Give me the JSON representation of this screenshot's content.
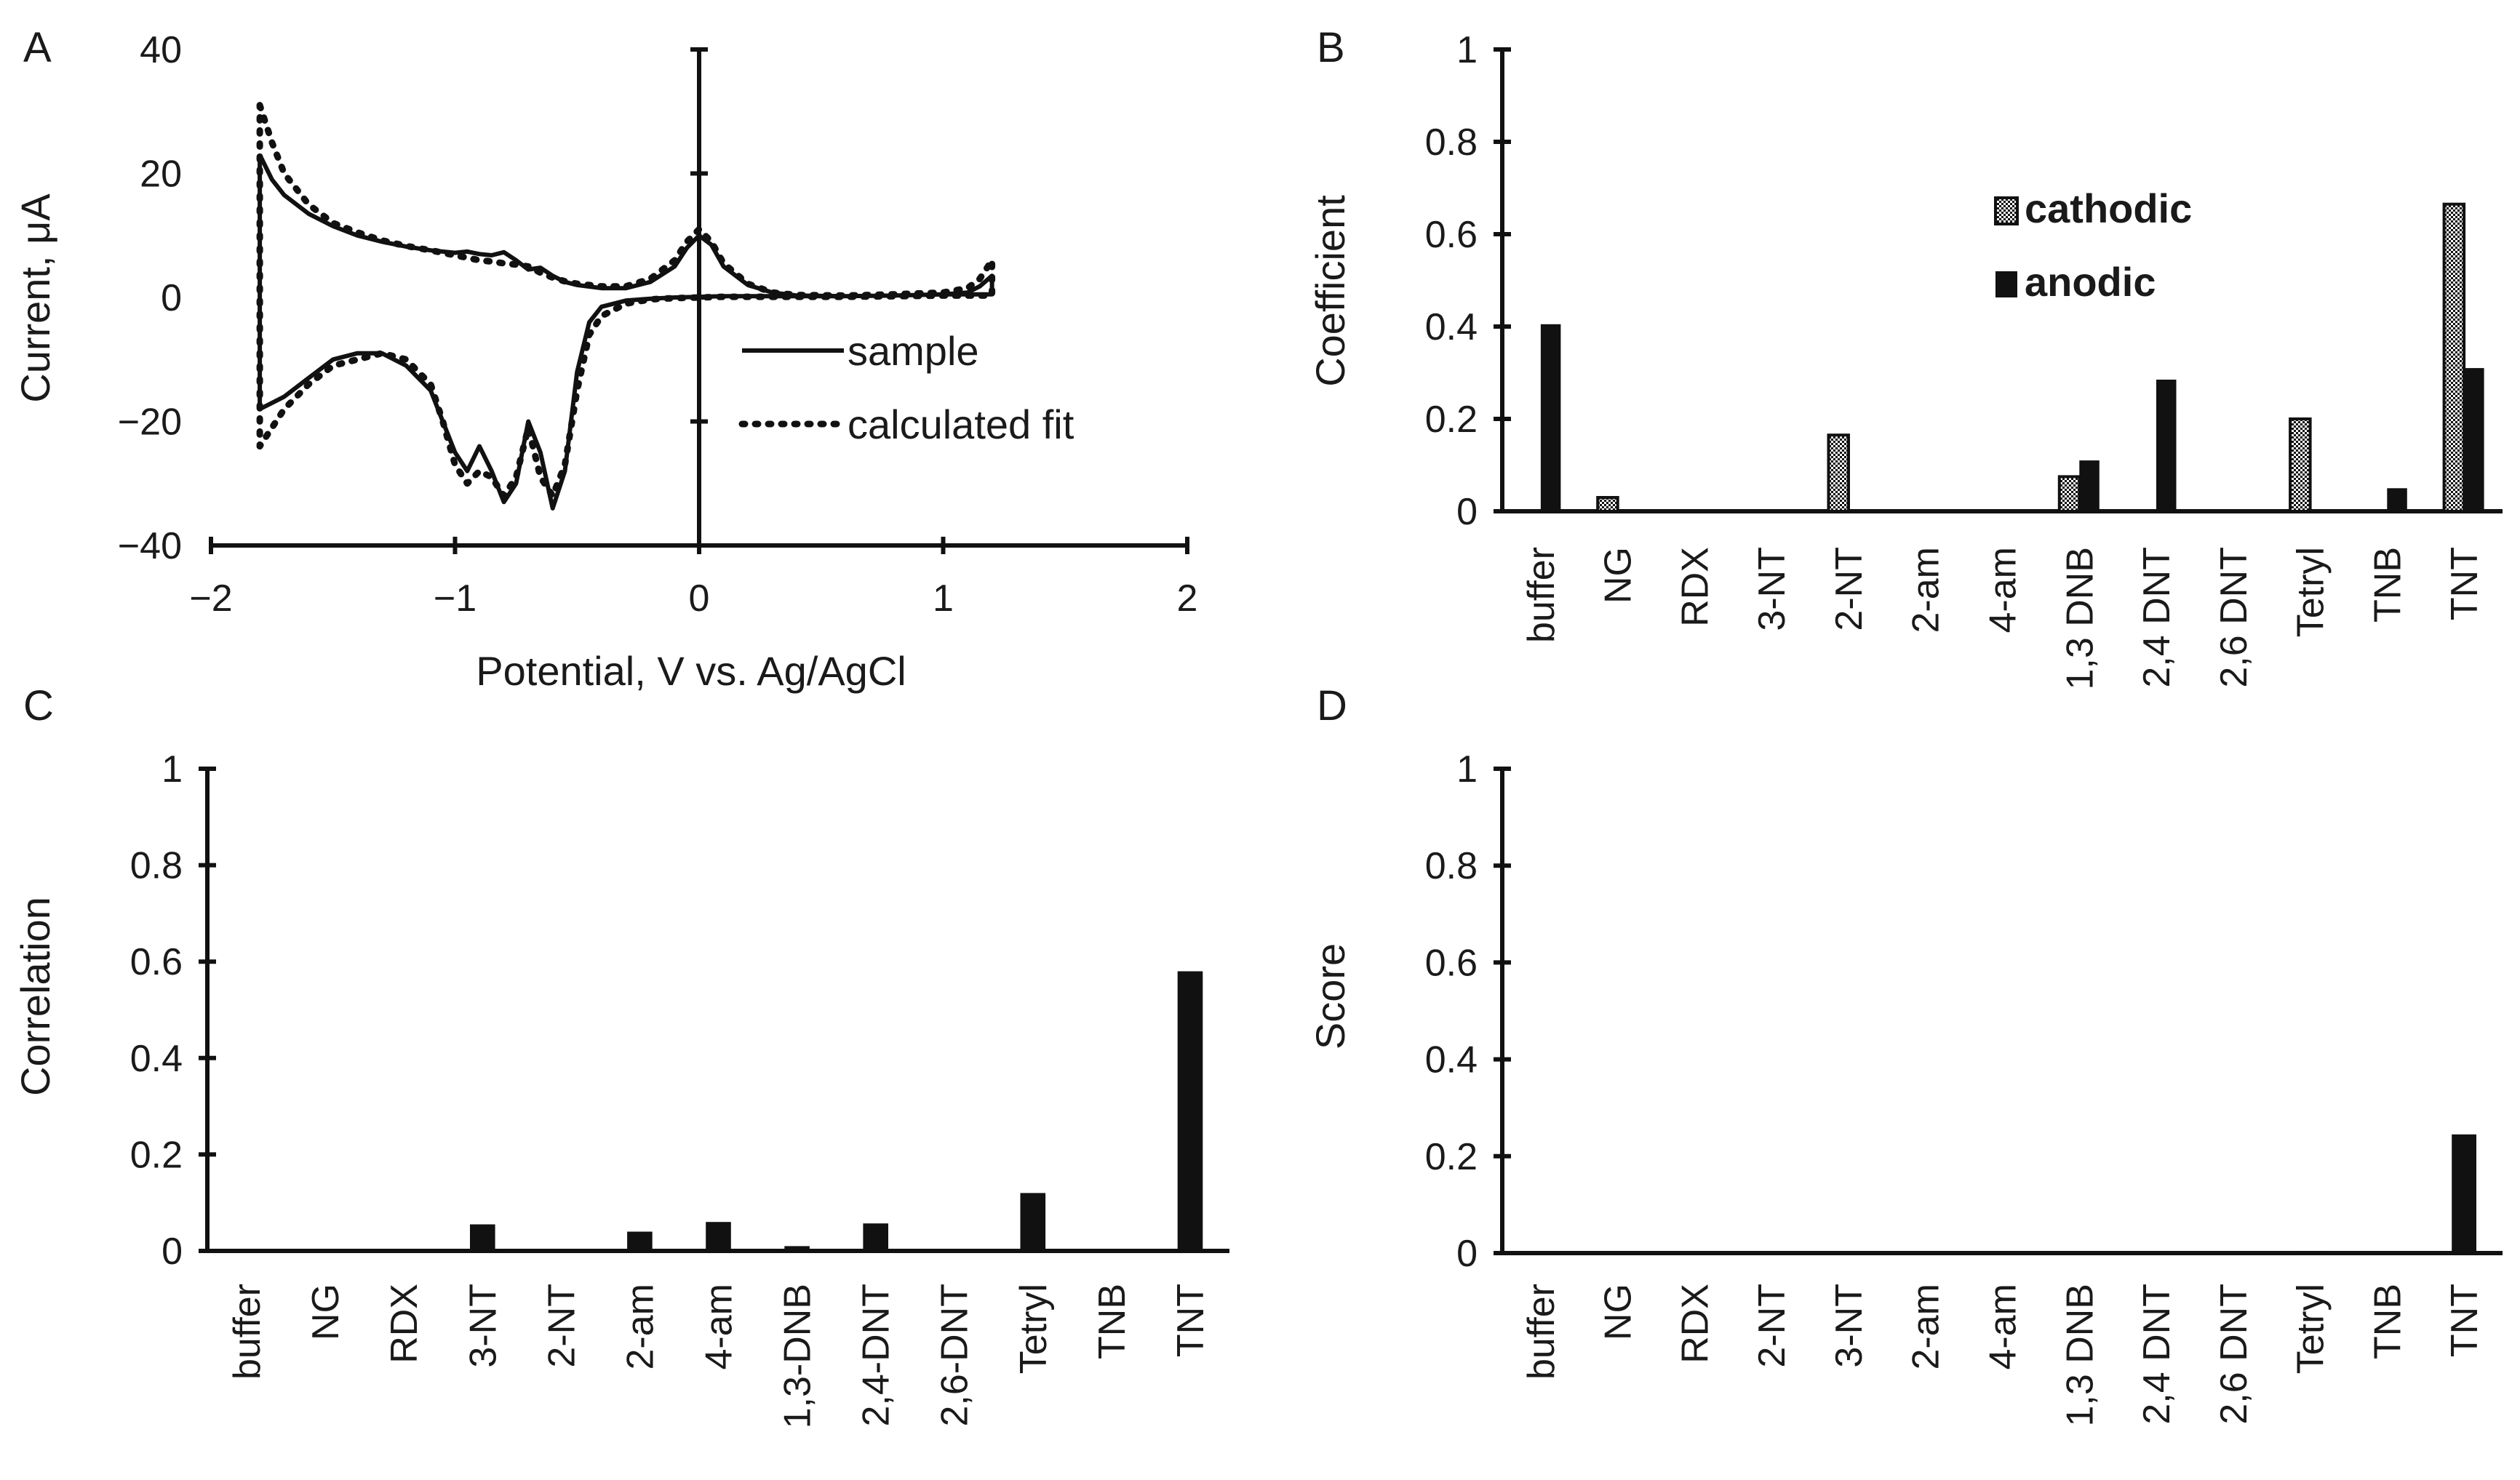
{
  "colors": {
    "ink": "#111111",
    "bar": "#111111",
    "paper": "#ffffff"
  },
  "chart_data": [
    {
      "panel": "A",
      "type": "line",
      "xlabel": "Potential, V vs. Ag/AgCl",
      "ylabel": "Current, μA",
      "xlim": [
        -2,
        2
      ],
      "ylim": [
        -40,
        40
      ],
      "xticks": [
        -2,
        -1,
        0,
        1,
        2
      ],
      "yticks": [
        -40,
        -20,
        0,
        20,
        40
      ],
      "legend_position": "right",
      "series": [
        {
          "name": "sample",
          "style": "solid",
          "x": [
            -1.8,
            -1.75,
            -1.7,
            -1.6,
            -1.5,
            -1.4,
            -1.3,
            -1.2,
            -1.1,
            -1.0,
            -0.95,
            -0.9,
            -0.85,
            -0.8,
            -0.75,
            -0.7,
            -0.65,
            -0.6,
            -0.55,
            -0.5,
            -0.4,
            -0.3,
            -0.2,
            -0.1,
            -0.05,
            0.0,
            0.05,
            0.1,
            0.2,
            0.3,
            0.4,
            0.6,
            0.8,
            1.0,
            1.1,
            1.15,
            1.2,
            1.2,
            1.0,
            0.8,
            0.6,
            0.4,
            0.3,
            0.2,
            0.1,
            0.0,
            -0.1,
            -0.2,
            -0.3,
            -0.4,
            -0.45,
            -0.5,
            -0.55,
            -0.6,
            -0.65,
            -0.7,
            -0.75,
            -0.8,
            -0.85,
            -0.9,
            -0.95,
            -1.0,
            -1.05,
            -1.1,
            -1.2,
            -1.3,
            -1.4,
            -1.5,
            -1.6,
            -1.7,
            -1.8,
            -1.8
          ],
          "y": [
            23,
            19,
            16.5,
            13.5,
            11.5,
            10,
            9,
            8.2,
            7.6,
            7.2,
            7.4,
            7.0,
            6.8,
            7.3,
            6.0,
            4.5,
            4.8,
            3.5,
            2.5,
            2.0,
            1.5,
            1.5,
            2.5,
            5,
            8,
            10,
            8.5,
            5,
            2,
            0.8,
            0.3,
            0.2,
            0.3,
            0.5,
            0.8,
            1.8,
            3.5,
            0.5,
            0.5,
            0.3,
            0.2,
            0.2,
            0.2,
            0.2,
            0.2,
            0.1,
            0.0,
            -0.2,
            -0.5,
            -1.5,
            -4,
            -12,
            -28,
            -34,
            -25,
            -20,
            -30,
            -33,
            -28,
            -24,
            -28,
            -25,
            -20,
            -15,
            -11,
            -9,
            -9,
            -10,
            -13,
            -16,
            -18,
            23
          ]
        },
        {
          "name": "calculated fit",
          "style": "dotted",
          "x": [
            -1.8,
            -1.75,
            -1.7,
            -1.6,
            -1.5,
            -1.4,
            -1.3,
            -1.2,
            -1.1,
            -1.0,
            -0.95,
            -0.9,
            -0.85,
            -0.8,
            -0.75,
            -0.7,
            -0.65,
            -0.6,
            -0.55,
            -0.5,
            -0.4,
            -0.3,
            -0.2,
            -0.1,
            -0.05,
            0.0,
            0.05,
            0.1,
            0.2,
            0.3,
            0.4,
            0.6,
            0.8,
            1.0,
            1.1,
            1.15,
            1.2,
            1.2,
            1.0,
            0.8,
            0.6,
            0.4,
            0.3,
            0.2,
            0.1,
            0.0,
            -0.1,
            -0.2,
            -0.3,
            -0.4,
            -0.45,
            -0.5,
            -0.55,
            -0.6,
            -0.65,
            -0.7,
            -0.75,
            -0.8,
            -0.85,
            -0.9,
            -0.95,
            -1.0,
            -1.05,
            -1.1,
            -1.2,
            -1.3,
            -1.4,
            -1.5,
            -1.6,
            -1.7,
            -1.8,
            -1.8
          ],
          "y": [
            31,
            25,
            20,
            15,
            12,
            10.5,
            9.2,
            8.3,
            7.6,
            6.8,
            6.4,
            6.0,
            5.8,
            5.5,
            5.3,
            5.0,
            4.0,
            3.2,
            2.6,
            2.2,
            1.8,
            1.8,
            3.0,
            6,
            9,
            11,
            9,
            5.5,
            2.2,
            0.8,
            0.4,
            0.3,
            0.5,
            0.8,
            1.5,
            3,
            6,
            0.3,
            0.3,
            0.2,
            0.1,
            0.1,
            0.1,
            0.1,
            0.1,
            0.0,
            -0.1,
            -0.3,
            -1,
            -3,
            -6,
            -15,
            -27,
            -32,
            -29,
            -21,
            -29,
            -32,
            -29,
            -28,
            -30,
            -27,
            -20,
            -14,
            -10,
            -9,
            -10,
            -11,
            -14,
            -18,
            -24,
            31
          ]
        }
      ]
    },
    {
      "panel": "B",
      "type": "bar",
      "ylabel": "Coefficient",
      "ylim": [
        0,
        1
      ],
      "yticks": [
        0,
        0.2,
        0.4,
        0.6,
        0.8,
        1
      ],
      "yticklabels": [
        "0",
        "0.2",
        "0.4",
        "0.6",
        "0.8",
        "1"
      ],
      "legend_position": "top-right",
      "categories": [
        "buffer",
        "NG",
        "RDX",
        "3-NT",
        "2-NT",
        "2-am",
        "4-am",
        "1,3 DNB",
        "2,4 DNT",
        "2,6 DNT",
        "Tetryl",
        "TNB",
        "TNT"
      ],
      "series": [
        {
          "name": "cathodic",
          "pattern": "dotted",
          "values": [
            0,
            0.03,
            0,
            0,
            0.165,
            0,
            0,
            0.075,
            0,
            0,
            0.2,
            0,
            0.665
          ]
        },
        {
          "name": "anodic",
          "pattern": "solid",
          "values": [
            0.405,
            0,
            0,
            0,
            0,
            0,
            0,
            0.11,
            0.285,
            0,
            0,
            0.05,
            0.31
          ]
        }
      ]
    },
    {
      "panel": "C",
      "type": "bar",
      "ylabel": "Correlation",
      "ylim": [
        0,
        1
      ],
      "yticks": [
        0,
        0.2,
        0.4,
        0.6,
        0.8,
        1
      ],
      "yticklabels": [
        "0",
        "0.2",
        "0.4",
        "0.6",
        "0.8",
        "1"
      ],
      "categories": [
        "buffer",
        "NG",
        "RDX",
        "3-NT",
        "2-NT",
        "2-am",
        "4-am",
        "1,3-DNB",
        "2,4-DNT",
        "2,6-DNT",
        "Tetryl",
        "TNB",
        "TNT"
      ],
      "values": [
        0,
        0,
        0,
        0.055,
        0,
        0.04,
        0.06,
        0.01,
        0.057,
        0,
        0.12,
        0,
        0.58
      ]
    },
    {
      "panel": "D",
      "type": "bar",
      "ylabel": "Score",
      "ylim": [
        0,
        1
      ],
      "yticks": [
        0,
        0.2,
        0.4,
        0.6,
        0.8,
        1
      ],
      "yticklabels": [
        "0",
        "0.2",
        "0.4",
        "0.6",
        "0.8",
        "1"
      ],
      "categories": [
        "buffer",
        "NG",
        "RDX",
        "2-NT",
        "3-NT",
        "2-am",
        "4-am",
        "1,3 DNB",
        "2,4 DNT",
        "2,6 DNT",
        "Tetryl",
        "TNB",
        "TNT"
      ],
      "values": [
        0,
        0,
        0,
        0,
        0,
        0,
        0,
        0,
        0,
        0,
        0.004,
        0,
        0.245
      ]
    }
  ]
}
